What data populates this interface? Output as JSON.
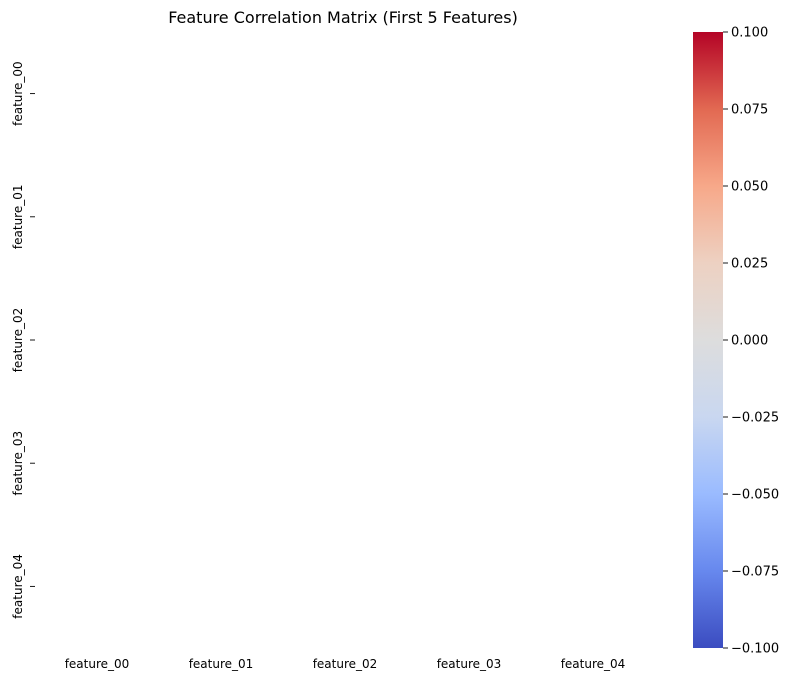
{
  "chart_data": {
    "type": "heatmap",
    "title": "Feature Correlation Matrix (First 5 Features)",
    "row_labels": [
      "feature_00",
      "feature_01",
      "feature_02",
      "feature_03",
      "feature_04"
    ],
    "col_labels": [
      "feature_00",
      "feature_01",
      "feature_02",
      "feature_03",
      "feature_04"
    ],
    "values": [
      [
        null,
        null,
        null,
        null,
        null
      ],
      [
        null,
        null,
        null,
        null,
        null
      ],
      [
        null,
        null,
        null,
        null,
        null
      ],
      [
        null,
        null,
        null,
        null,
        null
      ],
      [
        null,
        null,
        null,
        null,
        null
      ]
    ],
    "colormap": "coolwarm",
    "colorbar": {
      "min": -0.1,
      "max": 0.1,
      "ticks": [
        {
          "value": 0.1,
          "label": "0.100"
        },
        {
          "value": 0.075,
          "label": "0.075"
        },
        {
          "value": 0.05,
          "label": "0.050"
        },
        {
          "value": 0.025,
          "label": "0.025"
        },
        {
          "value": 0.0,
          "label": "0.000"
        },
        {
          "value": -0.025,
          "label": "−0.025"
        },
        {
          "value": -0.05,
          "label": "−0.050"
        },
        {
          "value": -0.075,
          "label": "−0.075"
        },
        {
          "value": -0.1,
          "label": "−0.100"
        }
      ],
      "colors": [
        "#3b4cc0",
        "#6788ee",
        "#9abbff",
        "#c9d7f0",
        "#dddddd",
        "#edd1c2",
        "#f7a889",
        "#e26952",
        "#b40426"
      ]
    },
    "grid": false,
    "legend": "colorbar-right"
  }
}
